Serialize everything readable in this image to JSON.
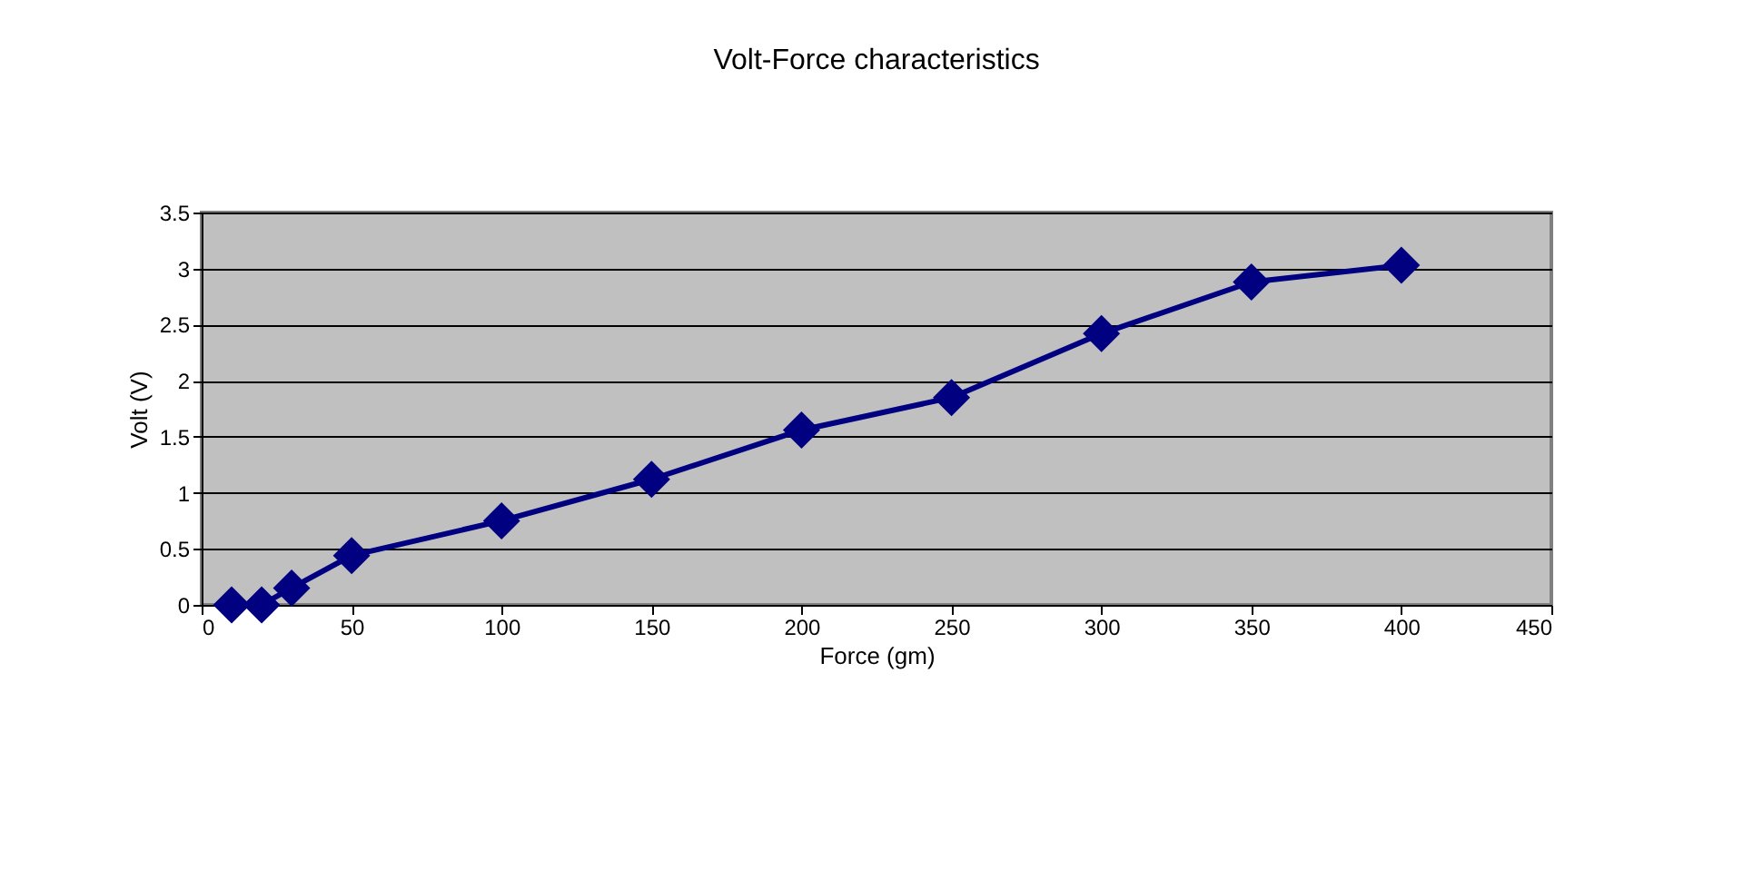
{
  "chart_data": {
    "type": "line",
    "title": "Volt-Force  characteristics",
    "xlabel": "Force  (gm)",
    "ylabel": "Volt  (V)",
    "x": [
      10,
      20,
      30,
      50,
      100,
      150,
      200,
      250,
      300,
      350,
      400
    ],
    "series": [
      {
        "color": "#000080",
        "values": [
          0,
          0,
          0.15,
          0.44,
          0.75,
          1.12,
          1.56,
          1.85,
          2.42,
          2.88,
          3.03
        ]
      }
    ],
    "xlim": [
      0,
      450
    ],
    "xticks": [
      0,
      50,
      100,
      150,
      200,
      250,
      300,
      350,
      400,
      450
    ],
    "ylim": [
      0,
      3.5
    ],
    "yticks": [
      0,
      0.5,
      1,
      1.5,
      2,
      2.5,
      3,
      3.5
    ],
    "grid": "y",
    "marker": "diamond",
    "line_style": "solid"
  }
}
